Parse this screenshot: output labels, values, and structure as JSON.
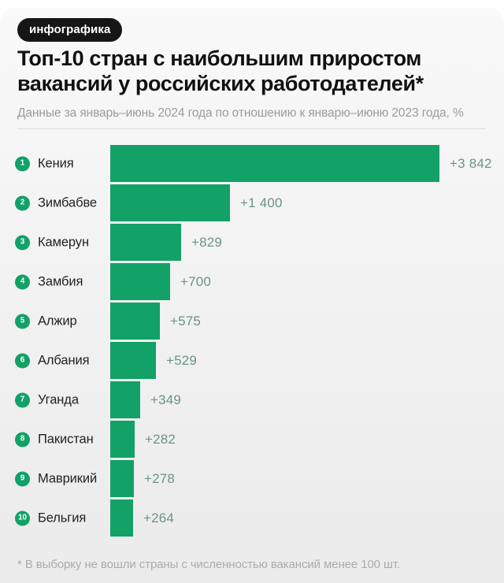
{
  "badge": {
    "label": "инфографика"
  },
  "header": {
    "title_lines": [
      "Топ-10 стран с наибольшим приростом",
      "вакансий у российских работодателей*"
    ],
    "subtitle": "Данные за январь–июнь 2024 года по отношению к январю–июню 2023 года, %"
  },
  "footnote": "* В выборку не вошли страны с численностью вакансий менее 100 шт.",
  "colors": {
    "bar": "#12A167",
    "rank_badge": "#12A167",
    "value_label": "#6B9482",
    "badge_bg": "#161616",
    "badge_text": "#FFFFFF"
  },
  "chart_data": {
    "type": "bar",
    "orientation": "horizontal",
    "title": "Топ-10 стран с наибольшим приростом вакансий у российских работодателей*",
    "subtitle": "Данные за январь–июнь 2024 года по отношению к январю–июню 2023 года, %",
    "unit": "%",
    "ranks": [
      "1",
      "2",
      "3",
      "4",
      "5",
      "6",
      "7",
      "8",
      "9",
      "10"
    ],
    "categories": [
      "Кения",
      "Зимбабве",
      "Камерун",
      "Замбия",
      "Алжир",
      "Албания",
      "Уганда",
      "Пакистан",
      "Маврикий",
      "Бельгия"
    ],
    "values": [
      3842,
      1400,
      829,
      700,
      575,
      529,
      349,
      282,
      278,
      264
    ],
    "value_labels": [
      "+3 842",
      "+1 400",
      "+829",
      "+700",
      "+575",
      "+529",
      "+349",
      "+282",
      "+278",
      "+264"
    ],
    "max_value": 3842,
    "grid": false,
    "legend": false
  }
}
